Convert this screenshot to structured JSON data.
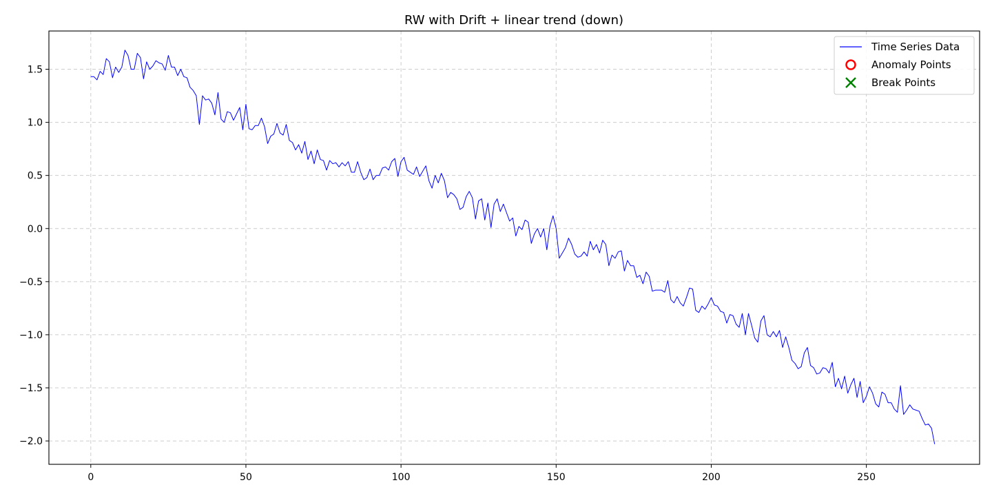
{
  "chart_data": {
    "type": "line",
    "title": "RW with Drift + linear trend (down)",
    "xlabel": "",
    "ylabel": "",
    "xlim": [
      -13.5,
      286.5
    ],
    "ylim": [
      -2.22,
      1.86
    ],
    "xticks": [
      0,
      50,
      100,
      150,
      200,
      250
    ],
    "yticks": [
      -2.0,
      -1.5,
      -1.0,
      -0.5,
      0.0,
      0.5,
      1.0,
      1.5
    ],
    "xtick_labels": [
      "0",
      "50",
      "100",
      "150",
      "200",
      "250"
    ],
    "ytick_labels": [
      "−2.0",
      "−1.5",
      "−1.0",
      "−0.5",
      "0.0",
      "0.5",
      "1.0",
      "1.5"
    ],
    "grid": true,
    "legend_position": "top-right",
    "legend": [
      {
        "label": "Time Series Data",
        "marker": "line",
        "color": "#0000ff"
      },
      {
        "label": "Anomaly Points",
        "marker": "circle",
        "color": "#ff0000"
      },
      {
        "label": "Break Points",
        "marker": "x",
        "color": "#008000"
      }
    ],
    "series": [
      {
        "name": "Time Series Data",
        "color": "#0000ff",
        "x_start": 0,
        "values": [
          1.43,
          1.43,
          1.4,
          1.48,
          1.45,
          1.6,
          1.57,
          1.42,
          1.52,
          1.47,
          1.52,
          1.68,
          1.63,
          1.5,
          1.5,
          1.65,
          1.61,
          1.41,
          1.57,
          1.5,
          1.53,
          1.58,
          1.56,
          1.55,
          1.49,
          1.63,
          1.52,
          1.52,
          1.44,
          1.5,
          1.43,
          1.42,
          1.33,
          1.3,
          1.25,
          0.98,
          1.25,
          1.21,
          1.22,
          1.18,
          1.07,
          1.28,
          1.03,
          1.0,
          1.1,
          1.09,
          1.02,
          1.08,
          1.14,
          0.93,
          1.17,
          0.94,
          0.93,
          0.97,
          0.97,
          1.04,
          0.96,
          0.8,
          0.87,
          0.89,
          0.99,
          0.9,
          0.88,
          0.98,
          0.83,
          0.81,
          0.74,
          0.79,
          0.71,
          0.82,
          0.65,
          0.73,
          0.61,
          0.74,
          0.65,
          0.64,
          0.55,
          0.64,
          0.61,
          0.62,
          0.58,
          0.62,
          0.59,
          0.63,
          0.53,
          0.53,
          0.63,
          0.53,
          0.46,
          0.48,
          0.56,
          0.46,
          0.5,
          0.5,
          0.57,
          0.58,
          0.55,
          0.63,
          0.66,
          0.49,
          0.63,
          0.67,
          0.55,
          0.53,
          0.51,
          0.58,
          0.49,
          0.54,
          0.59,
          0.45,
          0.38,
          0.5,
          0.43,
          0.52,
          0.45,
          0.29,
          0.34,
          0.32,
          0.28,
          0.18,
          0.2,
          0.3,
          0.35,
          0.29,
          0.09,
          0.26,
          0.28,
          0.08,
          0.24,
          0.01,
          0.23,
          0.28,
          0.16,
          0.23,
          0.15,
          0.07,
          0.1,
          -0.07,
          0.02,
          -0.01,
          0.08,
          0.06,
          -0.14,
          -0.05,
          0.0,
          -0.08,
          0.0,
          -0.2,
          0.02,
          0.12,
          0.0,
          -0.28,
          -0.23,
          -0.18,
          -0.09,
          -0.15,
          -0.24,
          -0.27,
          -0.26,
          -0.22,
          -0.26,
          -0.12,
          -0.2,
          -0.15,
          -0.23,
          -0.11,
          -0.15,
          -0.35,
          -0.25,
          -0.28,
          -0.22,
          -0.21,
          -0.4,
          -0.3,
          -0.35,
          -0.35,
          -0.46,
          -0.44,
          -0.52,
          -0.41,
          -0.45,
          -0.59,
          -0.58,
          -0.58,
          -0.58,
          -0.6,
          -0.49,
          -0.67,
          -0.7,
          -0.64,
          -0.7,
          -0.73,
          -0.65,
          -0.56,
          -0.57,
          -0.77,
          -0.79,
          -0.73,
          -0.76,
          -0.71,
          -0.65,
          -0.72,
          -0.73,
          -0.78,
          -0.79,
          -0.89,
          -0.81,
          -0.82,
          -0.9,
          -0.93,
          -0.8,
          -1.0,
          -0.8,
          -0.91,
          -1.03,
          -1.07,
          -0.87,
          -0.82,
          -1.0,
          -1.02,
          -0.97,
          -1.02,
          -0.96,
          -1.12,
          -1.02,
          -1.12,
          -1.24,
          -1.27,
          -1.32,
          -1.3,
          -1.17,
          -1.12,
          -1.29,
          -1.31,
          -1.37,
          -1.36,
          -1.31,
          -1.32,
          -1.36,
          -1.26,
          -1.49,
          -1.41,
          -1.51,
          -1.39,
          -1.55,
          -1.47,
          -1.41,
          -1.59,
          -1.44,
          -1.64,
          -1.58,
          -1.49,
          -1.55,
          -1.65,
          -1.68,
          -1.54,
          -1.56,
          -1.64,
          -1.64,
          -1.7,
          -1.73,
          -1.48,
          -1.75,
          -1.71,
          -1.66,
          -1.7,
          -1.71,
          -1.72,
          -1.79,
          -1.85,
          -1.84,
          -1.88,
          -2.03
        ]
      }
    ],
    "anomaly_points": [],
    "break_points": []
  }
}
